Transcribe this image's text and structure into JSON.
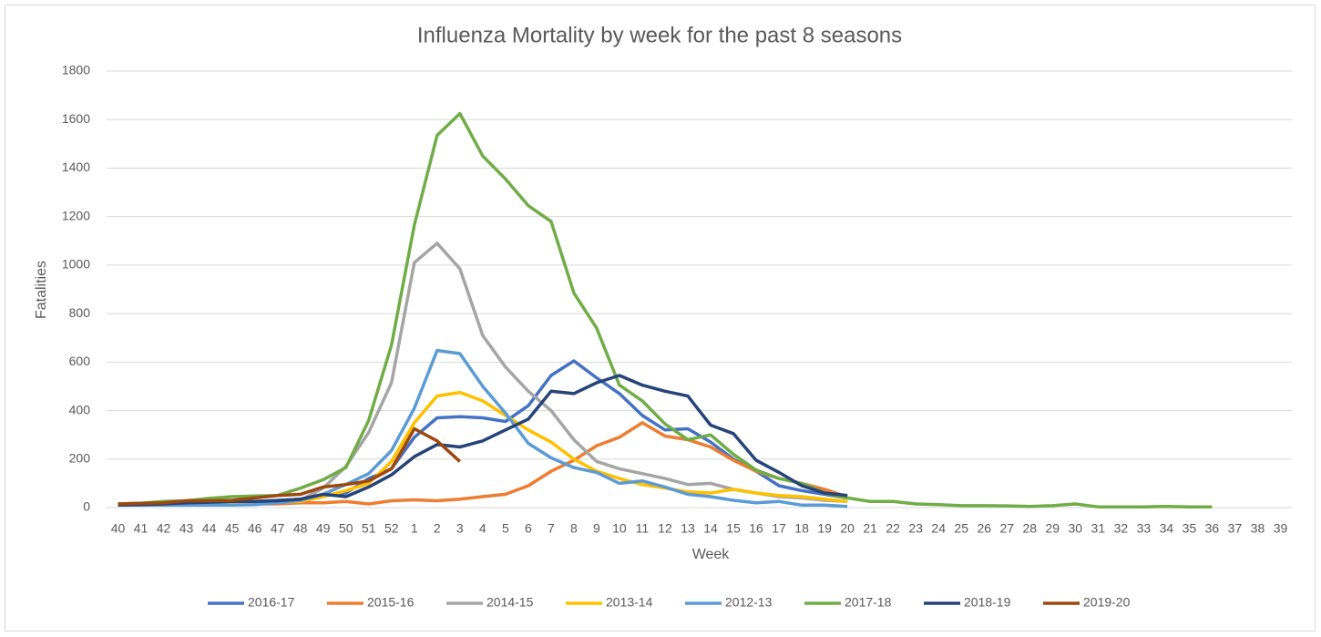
{
  "chart_data": {
    "type": "line",
    "title": "Influenza Mortality by week for the past 8 seasons",
    "x_label": "Week",
    "y_label": "Fatalities",
    "categories": [
      "40",
      "41",
      "42",
      "43",
      "44",
      "45",
      "46",
      "47",
      "48",
      "49",
      "50",
      "51",
      "52",
      "1",
      "2",
      "3",
      "4",
      "5",
      "6",
      "7",
      "8",
      "9",
      "10",
      "11",
      "12",
      "13",
      "14",
      "15",
      "16",
      "17",
      "18",
      "19",
      "20",
      "21",
      "22",
      "23",
      "24",
      "25",
      "26",
      "27",
      "28",
      "29",
      "30",
      "31",
      "32",
      "33",
      "34",
      "35",
      "36",
      "37",
      "38",
      "39"
    ],
    "ylim": [
      0,
      1800
    ],
    "yticks": [
      0,
      200,
      400,
      600,
      800,
      1000,
      1200,
      1400,
      1600,
      1800
    ],
    "grid": true,
    "legend": "bottom",
    "series": [
      {
        "name": "2016-17",
        "color": "#4472c4",
        "values": [
          10,
          12,
          15,
          18,
          20,
          22,
          25,
          30,
          35,
          50,
          60,
          120,
          160,
          290,
          370,
          375,
          370,
          355,
          420,
          545,
          605,
          535,
          470,
          380,
          320,
          325,
          270,
          200,
          150,
          90,
          70,
          55,
          40,
          null,
          null,
          null,
          null,
          null,
          null,
          null,
          null,
          null,
          null,
          null,
          null,
          null,
          null,
          null,
          null,
          null,
          null,
          null
        ]
      },
      {
        "name": "2015-16",
        "color": "#ed7d31",
        "values": [
          10,
          12,
          15,
          18,
          20,
          20,
          15,
          15,
          20,
          20,
          25,
          15,
          28,
          32,
          28,
          35,
          45,
          55,
          90,
          150,
          195,
          255,
          290,
          350,
          295,
          280,
          250,
          195,
          150,
          120,
          100,
          75,
          45,
          null,
          null,
          null,
          null,
          null,
          null,
          null,
          null,
          null,
          null,
          null,
          null,
          null,
          null,
          null,
          null,
          null,
          null,
          null
        ]
      },
      {
        "name": "2014-15",
        "color": "#a5a5a5",
        "values": [
          10,
          12,
          15,
          18,
          20,
          22,
          22,
          25,
          30,
          80,
          170,
          310,
          515,
          1010,
          1090,
          985,
          710,
          580,
          480,
          400,
          280,
          190,
          160,
          140,
          120,
          95,
          100,
          75,
          60,
          45,
          40,
          30,
          25,
          null,
          null,
          null,
          null,
          null,
          null,
          null,
          null,
          null,
          null,
          null,
          null,
          null,
          null,
          null,
          null,
          null,
          null,
          null
        ]
      },
      {
        "name": "2013-14",
        "color": "#ffc000",
        "values": [
          10,
          12,
          14,
          16,
          18,
          20,
          20,
          22,
          25,
          45,
          70,
          100,
          190,
          350,
          460,
          475,
          440,
          380,
          320,
          270,
          200,
          150,
          120,
          95,
          80,
          65,
          60,
          75,
          60,
          50,
          45,
          35,
          25,
          null,
          null,
          null,
          null,
          null,
          null,
          null,
          null,
          null,
          null,
          null,
          null,
          null,
          null,
          null,
          null,
          null,
          null,
          null
        ]
      },
      {
        "name": "2012-13",
        "color": "#5b9bd5",
        "values": [
          10,
          10,
          10,
          10,
          10,
          10,
          12,
          20,
          30,
          55,
          95,
          140,
          235,
          410,
          648,
          635,
          500,
          390,
          265,
          205,
          165,
          145,
          100,
          110,
          85,
          55,
          45,
          30,
          20,
          25,
          10,
          10,
          5,
          null,
          null,
          null,
          null,
          null,
          null,
          null,
          null,
          null,
          null,
          null,
          null,
          null,
          null,
          null,
          null,
          null,
          null,
          null
        ]
      },
      {
        "name": "2017-18",
        "color": "#70ad47",
        "values": [
          15,
          18,
          25,
          28,
          38,
          45,
          48,
          50,
          80,
          115,
          165,
          360,
          670,
          1165,
          1535,
          1625,
          1450,
          1355,
          1245,
          1180,
          885,
          740,
          505,
          440,
          345,
          280,
          300,
          220,
          155,
          120,
          100,
          60,
          40,
          25,
          25,
          15,
          12,
          8,
          8,
          7,
          5,
          8,
          15,
          3,
          3,
          3,
          5,
          3,
          3,
          null,
          null,
          null
        ]
      },
      {
        "name": "2018-19",
        "color": "#264478",
        "values": [
          10,
          12,
          15,
          20,
          22,
          25,
          25,
          28,
          35,
          55,
          45,
          85,
          135,
          210,
          260,
          250,
          275,
          320,
          365,
          480,
          470,
          515,
          545,
          505,
          480,
          460,
          340,
          305,
          195,
          145,
          90,
          60,
          50,
          null,
          null,
          null,
          null,
          null,
          null,
          null,
          null,
          null,
          null,
          null,
          null,
          null,
          null,
          null,
          null,
          null,
          null,
          null
        ]
      },
      {
        "name": "2019-20",
        "color": "#9e480e",
        "values": [
          15,
          18,
          20,
          28,
          28,
          30,
          40,
          50,
          55,
          85,
          95,
          110,
          160,
          325,
          275,
          190,
          null,
          null,
          null,
          null,
          null,
          null,
          null,
          null,
          null,
          null,
          null,
          null,
          null,
          null,
          null,
          null,
          null,
          null,
          null,
          null,
          null,
          null,
          null,
          null,
          null,
          null,
          null,
          null,
          null,
          null,
          null,
          null,
          null,
          null,
          null,
          null
        ]
      }
    ]
  }
}
